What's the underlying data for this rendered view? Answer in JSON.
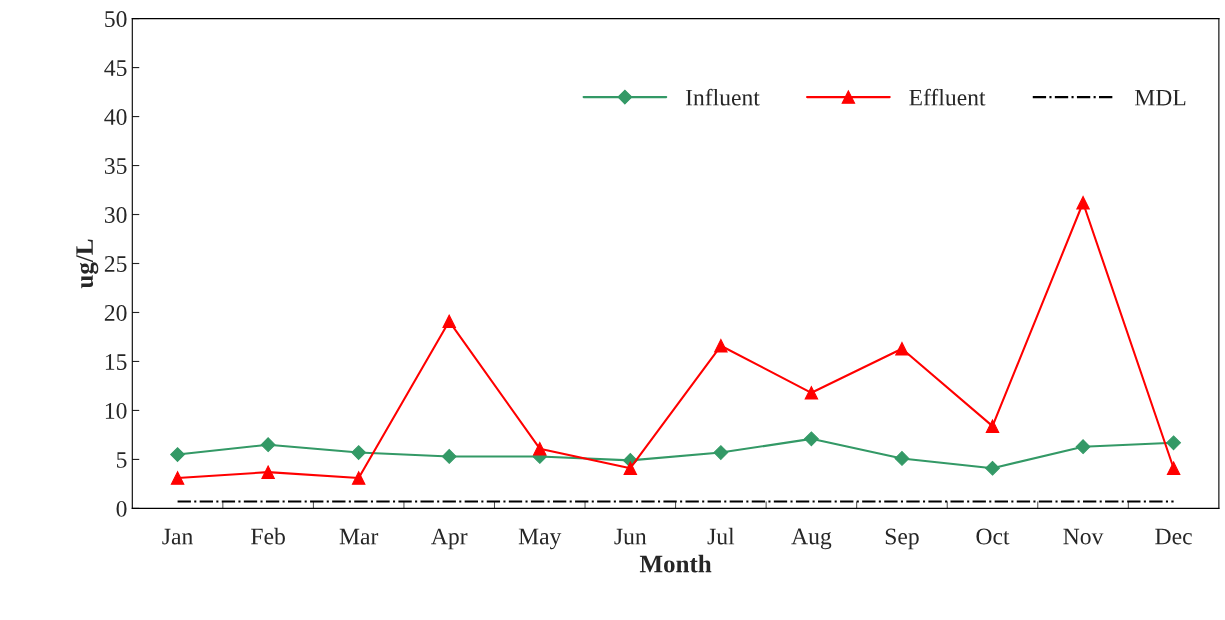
{
  "chart_data": {
    "type": "line",
    "xlabel": "Month",
    "ylabel": "ug/L",
    "categories": [
      "Jan",
      "Feb",
      "Mar",
      "Apr",
      "May",
      "Jun",
      "Jul",
      "Aug",
      "Sep",
      "Oct",
      "Nov",
      "Dec"
    ],
    "series": [
      {
        "name": "Influent",
        "color": "#339966",
        "marker": "diamond",
        "values": [
          5.5,
          6.5,
          5.7,
          5.3,
          5.3,
          4.9,
          5.7,
          7.1,
          5.1,
          4.1,
          6.3,
          6.7
        ]
      },
      {
        "name": "Effluent",
        "color": "#ff0000",
        "marker": "triangle",
        "values": [
          3.1,
          3.7,
          3.1,
          19.1,
          6.1,
          4.1,
          16.6,
          11.8,
          16.3,
          8.4,
          31.2,
          4.1
        ]
      },
      {
        "name": "MDL",
        "color": "#000000",
        "marker": "none",
        "line_style": "dashdot",
        "values": [
          0.7,
          0.7,
          0.7,
          0.7,
          0.7,
          0.7,
          0.7,
          0.7,
          0.7,
          0.7,
          0.7,
          0.7
        ]
      }
    ],
    "ylim": [
      0,
      50
    ],
    "yticks": [
      0,
      5,
      10,
      15,
      20,
      25,
      30,
      35,
      40,
      45,
      50
    ],
    "grid": false,
    "legend": "top right"
  }
}
